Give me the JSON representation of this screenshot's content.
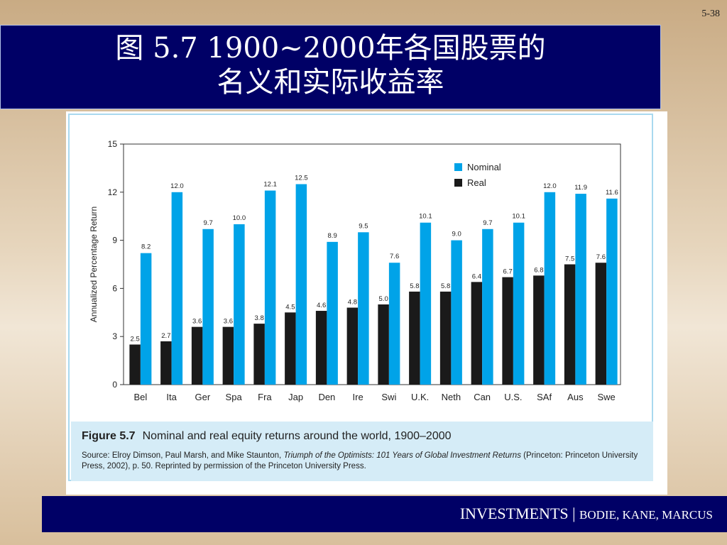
{
  "slide": {
    "number": "5-38"
  },
  "title": {
    "line1": "图 5.7 1900~2000年各国股票的",
    "line2": "名义和实际收益率"
  },
  "footer": {
    "book": "INVESTMENTS",
    "separator": " | ",
    "authors": "BODIE, KANE, MARCUS"
  },
  "caption": {
    "figure_label": "Figure 5.7",
    "figure_title": "Nominal and real equity returns around the world, 1900–2000",
    "source_prefix": "Source: Elroy Dimson, Paul Marsh, and Mike Staunton, ",
    "source_book": "Triumph of the Optimists: 101 Years of Global Investment Returns",
    "source_suffix": " (Princeton: Princeton University Press, 2002), p. 50. Reprinted by permission of the Princeton University Press."
  },
  "colors": {
    "nominal": "#00a3e8",
    "real": "#1a1a1a",
    "title_bg": "#000066"
  },
  "chart_data": {
    "type": "bar",
    "categories": [
      "Bel",
      "Ita",
      "Ger",
      "Spa",
      "Fra",
      "Jap",
      "Den",
      "Ire",
      "Swi",
      "U.K.",
      "Neth",
      "Can",
      "U.S.",
      "SAf",
      "Aus",
      "Swe"
    ],
    "series": [
      {
        "name": "Real",
        "values": [
          2.5,
          2.7,
          3.6,
          3.6,
          3.8,
          4.5,
          4.6,
          4.8,
          5.0,
          5.8,
          5.8,
          6.4,
          6.7,
          6.8,
          7.5,
          7.6
        ]
      },
      {
        "name": "Nominal",
        "values": [
          8.2,
          12.0,
          9.7,
          10.0,
          12.1,
          12.5,
          8.9,
          9.5,
          7.6,
          10.1,
          9.0,
          9.7,
          10.1,
          12.0,
          11.9,
          11.6
        ]
      }
    ],
    "ylabel": "Annualized Percentage Return",
    "ylim": [
      0,
      15
    ],
    "yticks": [
      0,
      3,
      6,
      9,
      12,
      15
    ],
    "legend": [
      "Nominal",
      "Real"
    ],
    "legend_position": "top-right",
    "grid": false
  }
}
